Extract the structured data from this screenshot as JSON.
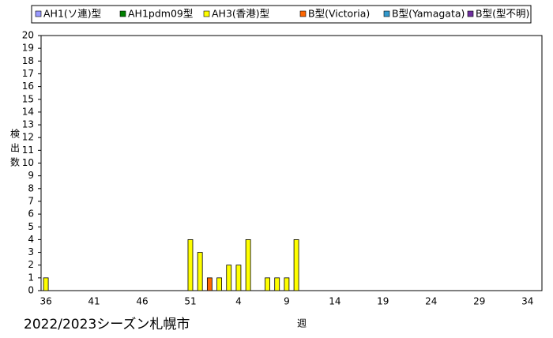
{
  "chart_data": {
    "type": "bar",
    "stacked": true,
    "subtitle": "2022/2023シーズン札幌市",
    "x_label": "週",
    "y_label": "検出数",
    "categories": [
      "36",
      null,
      null,
      null,
      null,
      "41",
      null,
      null,
      null,
      null,
      "46",
      null,
      null,
      null,
      null,
      "51",
      null,
      null,
      null,
      null,
      "4",
      null,
      null,
      null,
      null,
      "9",
      null,
      null,
      null,
      null,
      "14",
      null,
      null,
      null,
      null,
      "19",
      null,
      null,
      null,
      null,
      "24",
      null,
      null,
      null,
      null,
      "29",
      null,
      null,
      null,
      null,
      "34",
      null
    ],
    "series": [
      {
        "name": "AH1(ソ連)型",
        "color": "#9999ff",
        "values": [
          0,
          0,
          0,
          0,
          0,
          0,
          0,
          0,
          0,
          0,
          0,
          0,
          0,
          0,
          0,
          0,
          0,
          0,
          0,
          0,
          0,
          0,
          0,
          0,
          0,
          0,
          0,
          0,
          0,
          0,
          0,
          0,
          0,
          0,
          0,
          0,
          0,
          0,
          0,
          0,
          0,
          0,
          0,
          0,
          0,
          0,
          0,
          0,
          0,
          0,
          0,
          0
        ]
      },
      {
        "name": "AH1pdm09型",
        "color": "#008000",
        "values": [
          0,
          0,
          0,
          0,
          0,
          0,
          0,
          0,
          0,
          0,
          0,
          0,
          0,
          0,
          0,
          0,
          0,
          0,
          0,
          0,
          0,
          0,
          0,
          0,
          0,
          0,
          0,
          0,
          0,
          0,
          0,
          0,
          0,
          0,
          0,
          0,
          0,
          0,
          0,
          0,
          0,
          0,
          0,
          0,
          0,
          0,
          0,
          0,
          0,
          0,
          0,
          0
        ]
      },
      {
        "name": "AH3(香港)型",
        "color": "#ffff00",
        "values": [
          1,
          0,
          0,
          0,
          0,
          0,
          0,
          0,
          0,
          0,
          0,
          0,
          0,
          0,
          0,
          4,
          3,
          0,
          1,
          2,
          2,
          4,
          0,
          1,
          1,
          1,
          4,
          0,
          0,
          0,
          0,
          0,
          0,
          0,
          0,
          0,
          0,
          0,
          0,
          0,
          0,
          0,
          0,
          0,
          0,
          0,
          0,
          0,
          0,
          0,
          0,
          0
        ]
      },
      {
        "name": "B型(Victoria)",
        "color": "#ff6600",
        "values": [
          0,
          0,
          0,
          0,
          0,
          0,
          0,
          0,
          0,
          0,
          0,
          0,
          0,
          0,
          0,
          0,
          0,
          1,
          0,
          0,
          0,
          0,
          0,
          0,
          0,
          0,
          0,
          0,
          0,
          0,
          0,
          0,
          0,
          0,
          0,
          0,
          0,
          0,
          0,
          0,
          0,
          0,
          0,
          0,
          0,
          0,
          0,
          0,
          0,
          0,
          0,
          0
        ]
      },
      {
        "name": "B型(Yamagata)",
        "color": "#3399cc",
        "values": [
          0,
          0,
          0,
          0,
          0,
          0,
          0,
          0,
          0,
          0,
          0,
          0,
          0,
          0,
          0,
          0,
          0,
          0,
          0,
          0,
          0,
          0,
          0,
          0,
          0,
          0,
          0,
          0,
          0,
          0,
          0,
          0,
          0,
          0,
          0,
          0,
          0,
          0,
          0,
          0,
          0,
          0,
          0,
          0,
          0,
          0,
          0,
          0,
          0,
          0,
          0,
          0
        ]
      },
      {
        "name": "B型(型不明)",
        "color": "#7030a0",
        "values": [
          0,
          0,
          0,
          0,
          0,
          0,
          0,
          0,
          0,
          0,
          0,
          0,
          0,
          0,
          0,
          0,
          0,
          0,
          0,
          0,
          0,
          0,
          0,
          0,
          0,
          0,
          0,
          0,
          0,
          0,
          0,
          0,
          0,
          0,
          0,
          0,
          0,
          0,
          0,
          0,
          0,
          0,
          0,
          0,
          0,
          0,
          0,
          0,
          0,
          0,
          0,
          0
        ]
      }
    ],
    "ylim": [
      0,
      20
    ],
    "yticks": [
      0,
      1,
      2,
      3,
      4,
      5,
      6,
      7,
      8,
      9,
      10,
      11,
      12,
      13,
      14,
      15,
      16,
      17,
      18,
      19,
      20
    ],
    "grid": false,
    "legend": "top"
  }
}
